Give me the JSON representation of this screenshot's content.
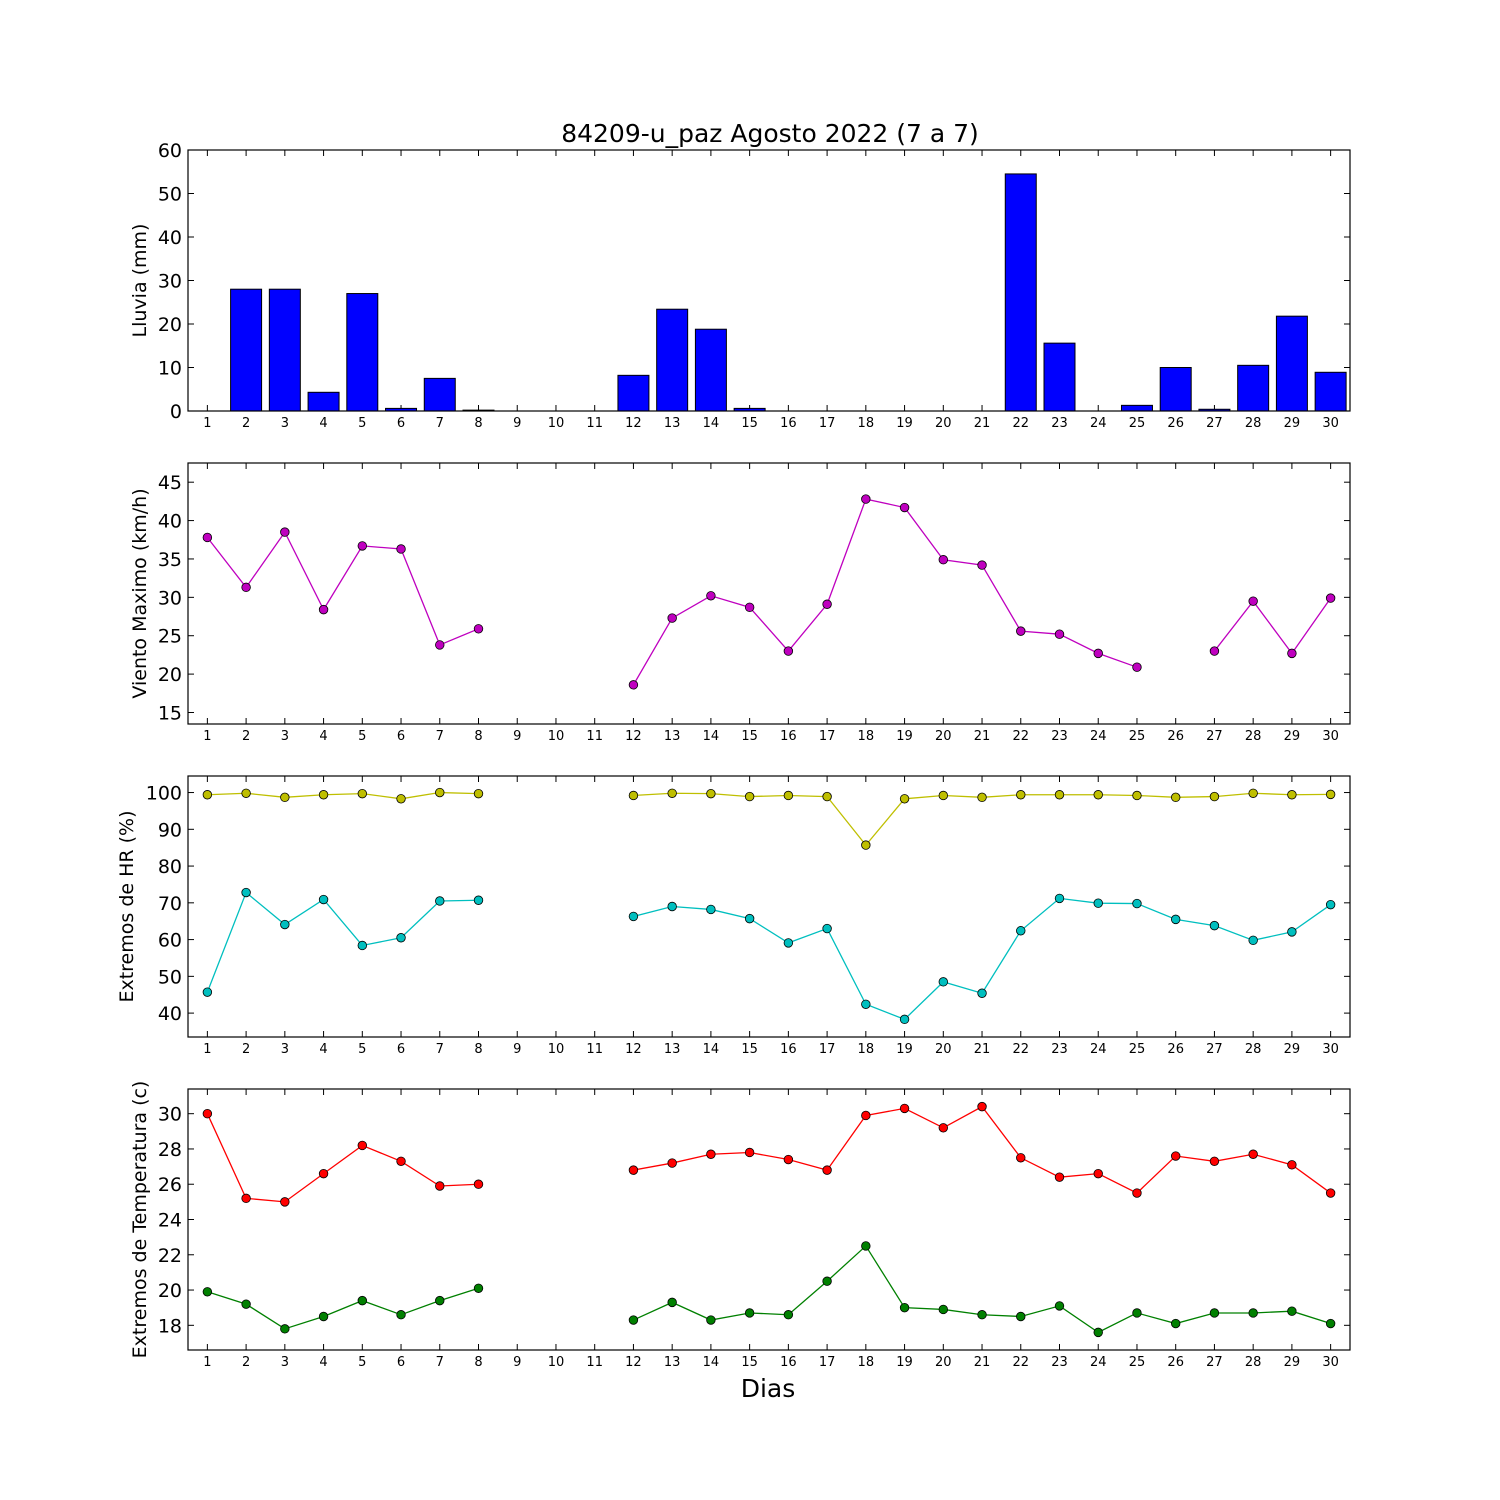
{
  "chart_data": {
    "title": "84209-u_paz Agosto 2022  (7 a 7)",
    "xlabel": "Dias",
    "days": [
      1,
      2,
      3,
      4,
      5,
      6,
      7,
      8,
      9,
      10,
      11,
      12,
      13,
      14,
      15,
      16,
      17,
      18,
      19,
      20,
      21,
      22,
      23,
      24,
      25,
      26,
      27,
      28,
      29,
      30
    ],
    "panels": [
      {
        "id": "lluvia",
        "type": "bar",
        "ylabel": "Lluvia (mm)",
        "ylim": [
          0,
          60
        ],
        "yticks": [
          0,
          10,
          20,
          30,
          40,
          50,
          60
        ],
        "series": [
          {
            "color": "#0000ff",
            "values": [
              0,
              28,
              28,
              4.3,
              27,
              0.6,
              7.5,
              0.2,
              0,
              0,
              0,
              8.2,
              23.4,
              18.8,
              0.6,
              0,
              0,
              0,
              0,
              0,
              0,
              54.5,
              15.6,
              0,
              1.3,
              10,
              0.4,
              10.5,
              21.8,
              8.9
            ]
          }
        ]
      },
      {
        "id": "viento",
        "type": "line",
        "ylabel": "Viento Maximo (km/h)",
        "ylim": [
          13.5,
          47.5
        ],
        "yticks": [
          15,
          20,
          25,
          30,
          35,
          40,
          45
        ],
        "series": [
          {
            "color": "#bf00bf",
            "values": [
              37.8,
              31.3,
              38.5,
              28.4,
              36.7,
              36.3,
              23.8,
              25.9,
              null,
              null,
              null,
              18.6,
              27.3,
              30.2,
              28.7,
              23,
              29.1,
              42.8,
              41.7,
              34.9,
              34.2,
              25.6,
              25.2,
              22.7,
              20.9,
              null,
              23,
              29.5,
              22.7,
              29.9
            ]
          }
        ]
      },
      {
        "id": "hr",
        "type": "line",
        "ylabel": "Extremos de HR (%)",
        "ylim": [
          33.5,
          104.5
        ],
        "yticks": [
          40,
          50,
          60,
          70,
          80,
          90,
          100
        ],
        "series": [
          {
            "color": "#bfbf00",
            "values": [
              99.4,
              99.8,
              98.7,
              99.4,
              99.7,
              98.3,
              100,
              99.7,
              null,
              null,
              null,
              99.2,
              99.8,
              99.7,
              98.9,
              99.2,
              98.9,
              85.7,
              98.3,
              99.2,
              98.7,
              99.4,
              99.4,
              99.4,
              99.2,
              98.7,
              98.9,
              99.8,
              99.4,
              99.5
            ]
          },
          {
            "color": "#00bfbf",
            "values": [
              45.7,
              72.8,
              64.1,
              70.9,
              58.4,
              60.5,
              70.5,
              70.7,
              null,
              null,
              null,
              66.3,
              69,
              68.2,
              65.7,
              59.1,
              63,
              42.4,
              38.3,
              48.5,
              45.4,
              62.4,
              71.2,
              69.9,
              69.8,
              65.5,
              63.8,
              59.8,
              62.1,
              69.5
            ]
          }
        ]
      },
      {
        "id": "temp",
        "type": "line",
        "ylabel": "Extremos de Temperatura (c)",
        "ylim": [
          16.6,
          31.4
        ],
        "yticks": [
          18,
          20,
          22,
          24,
          26,
          28,
          30
        ],
        "series": [
          {
            "color": "#ff0000",
            "values": [
              30,
              25.2,
              25,
              26.6,
              28.2,
              27.3,
              25.9,
              26,
              null,
              null,
              null,
              26.8,
              27.2,
              27.7,
              27.8,
              27.4,
              26.8,
              29.9,
              30.3,
              29.2,
              30.4,
              27.5,
              26.4,
              26.6,
              25.5,
              27.6,
              27.3,
              27.7,
              27.1,
              25.5
            ]
          },
          {
            "color": "#008000",
            "values": [
              19.9,
              19.2,
              17.8,
              18.5,
              19.4,
              18.6,
              19.4,
              20.1,
              null,
              null,
              null,
              18.3,
              19.3,
              18.3,
              18.7,
              18.6,
              20.5,
              22.5,
              19,
              18.9,
              18.6,
              18.5,
              19.1,
              17.6,
              18.7,
              18.1,
              18.7,
              18.7,
              18.8,
              18.1
            ]
          }
        ]
      }
    ]
  }
}
